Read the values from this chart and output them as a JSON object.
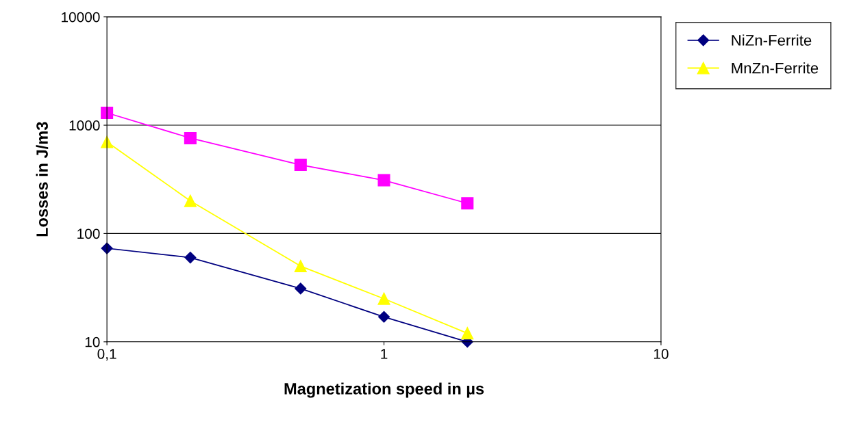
{
  "chart_data": {
    "type": "line",
    "xlabel": "Magnetization speed in µs",
    "ylabel": "Losses in J/m3",
    "log": "xy",
    "grid": "y",
    "legend": "top right",
    "xlim": [
      0.1,
      10
    ],
    "xticks": [
      {
        "value": 0.1,
        "label": "0,1"
      },
      1,
      10
    ],
    "ylim": [
      10,
      10000
    ],
    "yticks": [
      10,
      100,
      1000,
      10000
    ],
    "x": [
      0.1,
      0.2,
      0.5,
      1,
      2
    ],
    "series": [
      {
        "name": "NiZn-Ferrite",
        "color": "#000080",
        "marker": "diamond",
        "values": [
          73,
          60,
          31,
          17,
          10
        ]
      },
      {
        "color": "#ff00ff",
        "marker": "square",
        "values": [
          1300,
          760,
          430,
          310,
          190
        ]
      },
      {
        "name": "MnZn-Ferrite",
        "color": "#ffff00",
        "marker": "triangle",
        "values": [
          700,
          200,
          50,
          25,
          12
        ]
      }
    ]
  }
}
